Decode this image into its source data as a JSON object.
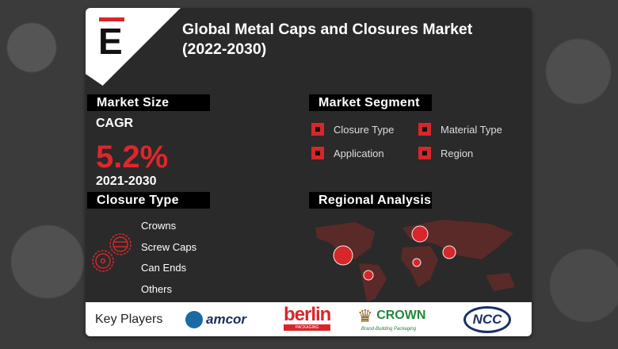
{
  "logo": {
    "letter": "E"
  },
  "title": "Global Metal Caps and Closures Market (2022-2030)",
  "market_size": {
    "header": "Market Size",
    "label": "CAGR",
    "value": "5.2%",
    "period": "2021-2030"
  },
  "market_segment": {
    "header": "Market Segment",
    "items": [
      "Closure Type",
      "Material Type",
      "Application",
      "Region"
    ]
  },
  "closure_type": {
    "header": "Closure Type",
    "items": [
      "Crowns",
      "Screw Caps",
      "Can Ends",
      "Others"
    ]
  },
  "regional_analysis": {
    "header": "Regional Analysis"
  },
  "key_players": {
    "label": "Key Players",
    "logos": [
      "amcor",
      "berlin",
      "PACKAGING",
      "CROWN",
      "Brand-Building Packaging",
      "NCC"
    ]
  },
  "colors": {
    "accent": "#d8262b",
    "card": "#2a2a2a",
    "map": "#5a2a28"
  }
}
